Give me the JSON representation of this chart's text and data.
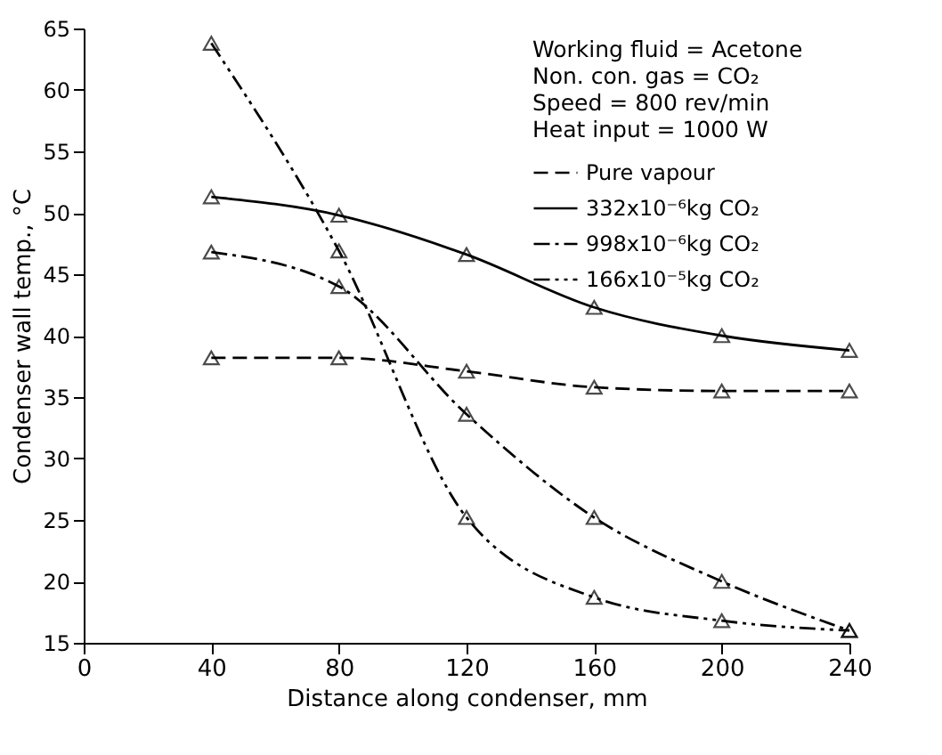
{
  "chart_data": {
    "type": "line",
    "xlabel": "Distance along condenser,   mm",
    "ylabel": "Condenser wall temp.,   °C",
    "annotations": [
      "Working fluid = Acetone",
      "Non. con. gas = CO₂",
      "Speed = 800 rev/min",
      "Heat input = 1000 W"
    ],
    "x": [
      40,
      80,
      120,
      160,
      200,
      240
    ],
    "series": [
      {
        "name": "Pure vapour",
        "color": "#000000",
        "line_style": "dashed",
        "values": [
          38.2,
          38.2,
          37.1,
          35.8,
          35.5,
          35.5
        ]
      },
      {
        "name": "332x10⁻⁶kg CO₂",
        "color": "#000000",
        "line_style": "solid",
        "values": [
          51.3,
          49.8,
          46.6,
          42.3,
          40.0,
          38.8
        ]
      },
      {
        "name": "998x10⁻⁶kg CO₂",
        "color": "#000000",
        "line_style": "dashdot",
        "values": [
          46.8,
          44.0,
          33.6,
          25.2,
          20.0,
          16.0
        ]
      },
      {
        "name": "166x10⁻⁵kg CO₂",
        "color": "#000000",
        "line_style": "dashdotdot",
        "values": [
          63.8,
          46.9,
          25.2,
          18.7,
          16.8,
          16.0
        ]
      }
    ],
    "xlim": [
      0,
      240
    ],
    "xticks": [
      0,
      40,
      80,
      120,
      160,
      200,
      240
    ],
    "ylim": [
      15,
      65
    ],
    "yticks": [
      15,
      20,
      25,
      30,
      35,
      40,
      45,
      50,
      55,
      60,
      65
    ],
    "marker": "triangle",
    "legend": "top right",
    "grid": false
  }
}
